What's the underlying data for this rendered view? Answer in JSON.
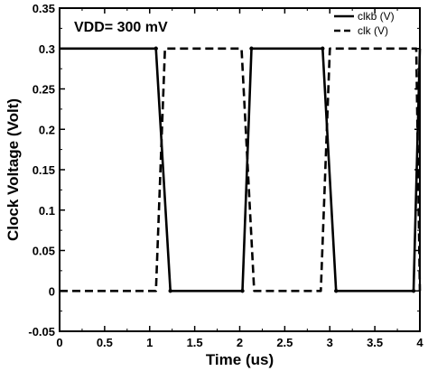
{
  "chart_data": {
    "type": "line",
    "title": "",
    "annotation": "VDD= 300 mV",
    "xlabel": "Time (us)",
    "ylabel": "Clock  Voltage (Volt)",
    "xlim": [
      0,
      4
    ],
    "ylim": [
      -0.05,
      0.35
    ],
    "xticks": [
      0,
      0.5,
      1,
      1.5,
      2,
      2.5,
      3,
      3.5,
      4
    ],
    "xtick_labels": [
      "0",
      "0.5",
      "1",
      "1.5",
      "2",
      "2.5",
      "3",
      "3.5",
      "4"
    ],
    "yticks": [
      -0.05,
      0,
      0.05,
      0.1,
      0.15,
      0.2,
      0.25,
      0.3,
      0.35
    ],
    "ytick_labels": [
      "-0.05",
      "0",
      "0.05",
      "0.1",
      "0.15",
      "0.2",
      "0.25",
      "0.3",
      "0.35"
    ],
    "grid": false,
    "legend_position": "top-right",
    "series": [
      {
        "name": "clkb (V)",
        "style": "solid",
        "color": "#000000",
        "x": [
          0,
          1.07,
          1.23,
          2.03,
          2.13,
          2.92,
          3.07,
          3.93,
          4.0
        ],
        "y": [
          0.3,
          0.3,
          0,
          0,
          0.3,
          0.3,
          0,
          0,
          0.3
        ]
      },
      {
        "name": "clk (V)",
        "style": "dashed",
        "color": "#000000",
        "x": [
          0,
          1.07,
          1.17,
          2.02,
          2.16,
          2.9,
          3.0,
          3.96,
          4.0
        ],
        "y": [
          0,
          0,
          0.3,
          0.3,
          0,
          0,
          0.3,
          0.3,
          0
        ]
      }
    ]
  }
}
